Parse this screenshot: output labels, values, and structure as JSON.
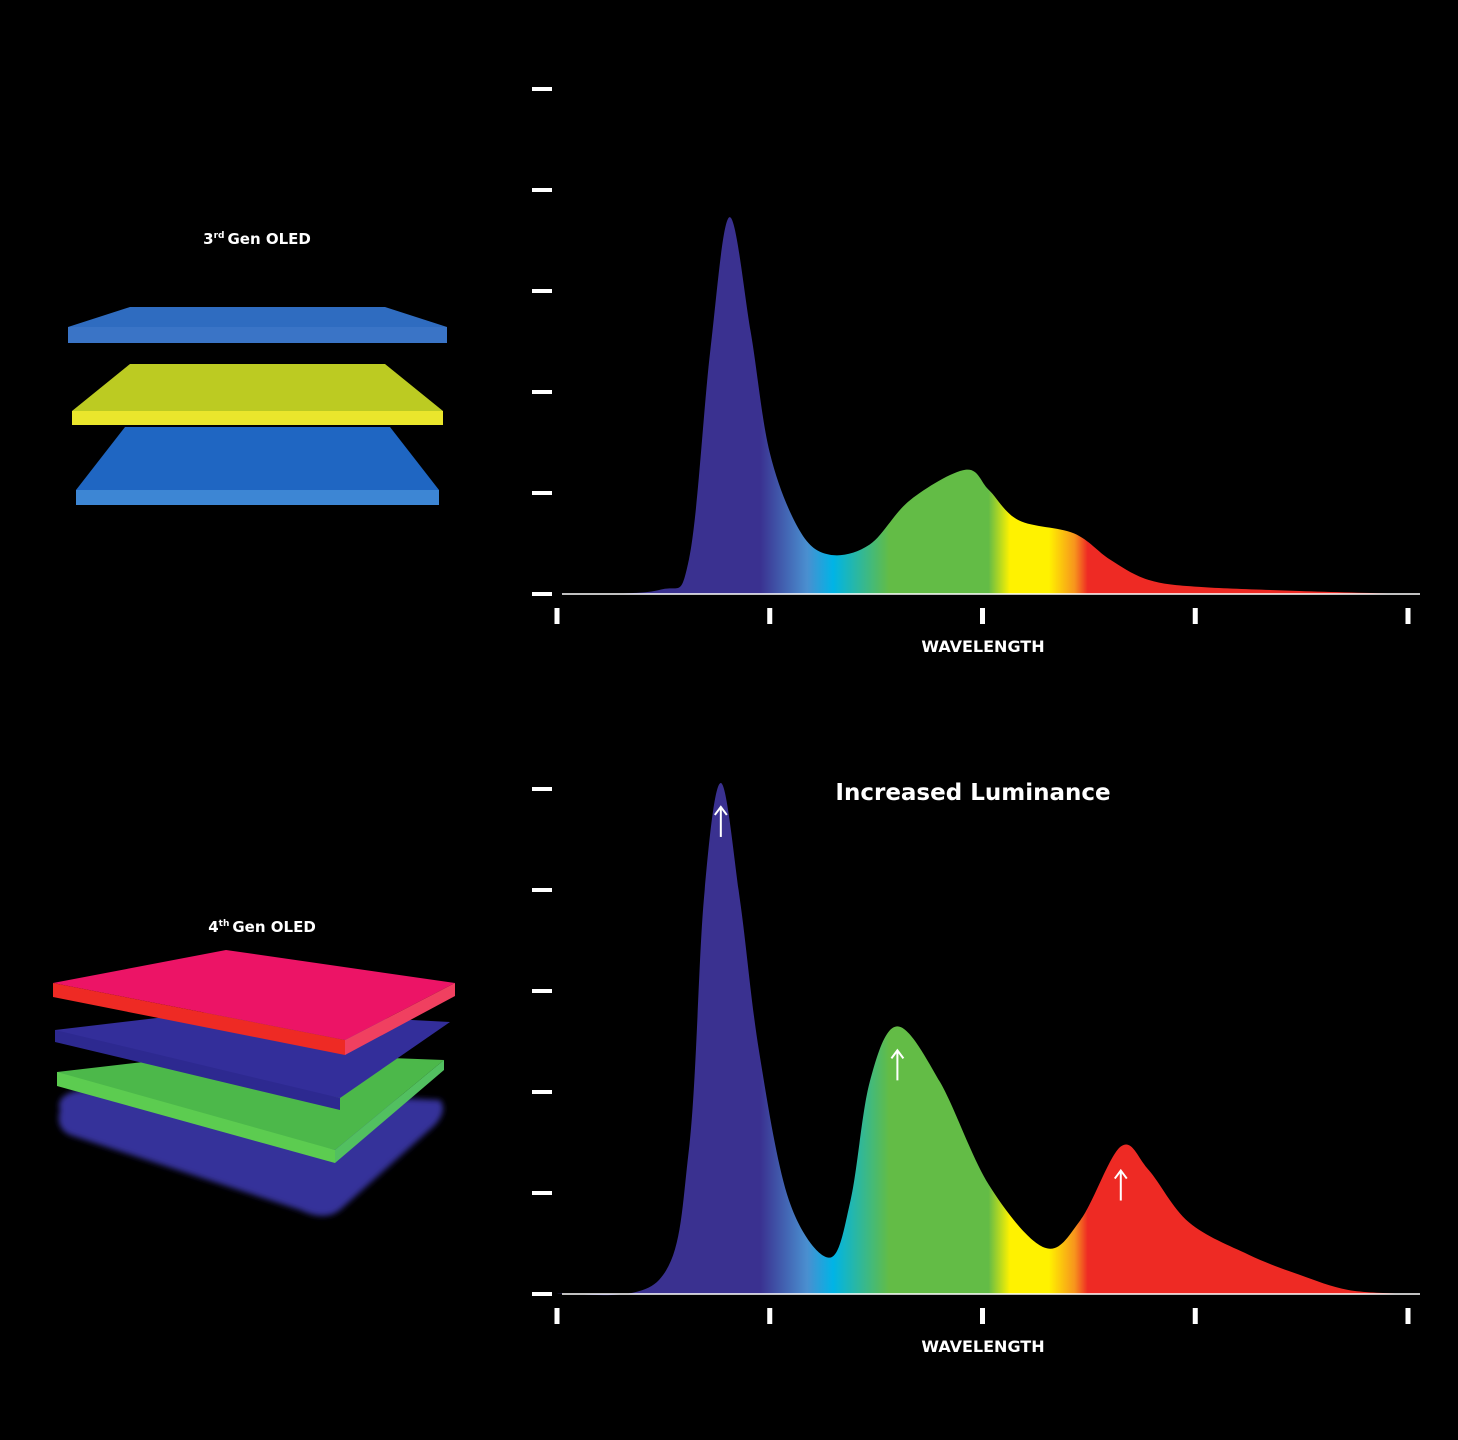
{
  "panels": [
    {
      "label_main": "3",
      "label_sup": "rd",
      "label_rest": "Gen OLED",
      "layer_colors": [
        "#2f6fc4",
        "#d4e02a",
        "#1f6fcc"
      ]
    },
    {
      "label_main": "4",
      "label_sup": "th",
      "label_rest": "Gen OLED",
      "layer_colors": [
        "#ec1466",
        "#332e9a",
        "#4cc04a",
        "#35309a"
      ]
    }
  ],
  "colors": {
    "violet": "#3a3190",
    "blue": "#4a8fd0",
    "cyan": "#00b4e6",
    "green": "#63bc46",
    "yellow": "#fff200",
    "orange": "#f7941d",
    "red": "#ee2a24"
  },
  "chart_data": [
    {
      "type": "area",
      "title": "",
      "xlabel": "WAVELENGTH",
      "ylabel": "",
      "xlim": [
        0,
        4
      ],
      "ylim": [
        0,
        5
      ],
      "x_ticks": [
        0,
        1,
        2,
        3,
        4
      ],
      "y_ticks": [
        0,
        1,
        2,
        3,
        4,
        5
      ],
      "tick_labels_shown": false,
      "grid": false,
      "series": [
        {
          "x": [
            0,
            0.48,
            0.62,
            0.72,
            0.81,
            0.91,
            1.0,
            1.14,
            1.28,
            1.47,
            1.66,
            1.92,
            2.03,
            2.17,
            2.43,
            2.6,
            2.78,
            3.02,
            3.49,
            4.0
          ],
          "y": [
            0,
            0.04,
            0.34,
            2.4,
            3.73,
            2.6,
            1.4,
            0.63,
            0.39,
            0.49,
            0.93,
            1.23,
            1.03,
            0.73,
            0.6,
            0.34,
            0.14,
            0.07,
            0.03,
            0
          ]
        }
      ],
      "annotation": ""
    },
    {
      "type": "area",
      "title": "",
      "xlabel": "WAVELENGTH",
      "ylabel": "",
      "xlim": [
        0,
        4
      ],
      "ylim": [
        0,
        5
      ],
      "x_ticks": [
        0,
        1,
        2,
        3,
        4
      ],
      "y_ticks": [
        0,
        1,
        2,
        3,
        4,
        5
      ],
      "tick_labels_shown": false,
      "grid": false,
      "series": [
        {
          "x": [
            0,
            0.48,
            0.62,
            0.69,
            0.77,
            0.86,
            0.95,
            1.09,
            1.28,
            1.38,
            1.47,
            1.6,
            1.8,
            2.03,
            2.29,
            2.46,
            2.65,
            2.78,
            2.97,
            3.25,
            3.49,
            3.72,
            4.0
          ],
          "y": [
            0,
            0.14,
            1.43,
            3.9,
            5.06,
            3.9,
            2.4,
            0.93,
            0.36,
            0.93,
            2.1,
            2.65,
            2.1,
            1.08,
            0.46,
            0.73,
            1.46,
            1.23,
            0.71,
            0.39,
            0.19,
            0.04,
            0
          ]
        }
      ],
      "annotation": "Increased Luminance",
      "arrows_at_x": [
        0.77,
        1.6,
        2.65
      ]
    }
  ]
}
